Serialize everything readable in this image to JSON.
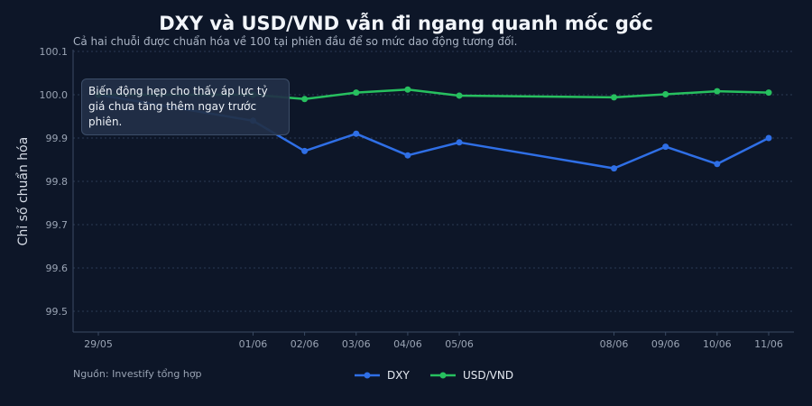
{
  "chart_data": {
    "type": "line",
    "title": "DXY và USD/VND vẫn đi ngang quanh mốc gốc",
    "subtitle": "Cả hai chuỗi được chuẩn hóa về 100 tại phiên đầu để so mức dao động tương đối.",
    "ylabel": "Chỉ số chuẩn hóa",
    "xlabel": "",
    "source": "Nguồn: Investify tổng hợp",
    "annotation": "Biến động hẹp cho thấy áp lực tỷ giá chưa tăng thêm ngay trước phiên.",
    "ylim": [
      99.45,
      100.1
    ],
    "yticks": [
      99.5,
      99.6,
      99.7,
      99.8,
      99.9,
      100.0,
      100.1
    ],
    "x": [
      "2025-05-29",
      "2025-06-01",
      "2025-06-02",
      "2025-06-03",
      "2025-06-04",
      "2025-06-05",
      "2025-06-08",
      "2025-06-09",
      "2025-06-10",
      "2025-06-11"
    ],
    "xlim": [
      "2025-05-28",
      "2025-06-11"
    ],
    "xtick_labels": [
      "29/05",
      "01/06",
      "02/06",
      "03/06",
      "04/06",
      "05/06",
      "08/06",
      "09/06",
      "10/06",
      "11/06"
    ],
    "grid": true,
    "legend": "bottom-center",
    "series": [
      {
        "name": "DXY",
        "color": "#2f6fe6",
        "values": [
          100.0,
          99.94,
          99.87,
          99.91,
          99.86,
          99.89,
          99.83,
          99.88,
          99.84,
          99.9
        ]
      },
      {
        "name": "USD/VND",
        "color": "#27c05f",
        "values": [
          100.0,
          100.0,
          99.99,
          100.005,
          100.012,
          99.998,
          99.994,
          100.001,
          100.008,
          100.005
        ]
      }
    ]
  }
}
